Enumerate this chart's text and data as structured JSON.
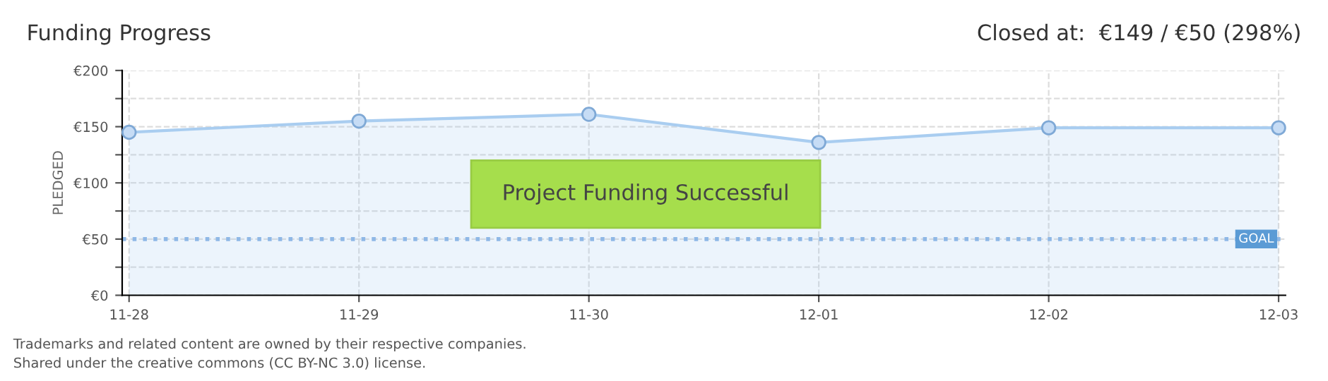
{
  "chart_data": {
    "type": "area",
    "title": "Funding Progress",
    "subtitle": "Closed at:  €149 / €50 (298%)",
    "ylabel": "PLEDGED",
    "categories": [
      "11-28",
      "11-29",
      "11-30",
      "12-01",
      "12-02",
      "12-03"
    ],
    "series": [
      {
        "color": "#a9cdf0",
        "values": [
          145,
          155,
          161,
          136,
          149,
          149
        ]
      }
    ],
    "ylim": [
      0,
      200
    ],
    "yticks": [
      {
        "value": 0,
        "label": "€0"
      },
      {
        "value": 25,
        "label": null
      },
      {
        "value": 50,
        "label": "€50"
      },
      {
        "value": 75,
        "label": null
      },
      {
        "value": 100,
        "label": "€100"
      },
      {
        "value": 125,
        "label": null
      },
      {
        "value": 150,
        "label": "€150"
      },
      {
        "value": 175,
        "label": null
      },
      {
        "value": 200,
        "label": "€200"
      }
    ],
    "grid": true,
    "marker": "circle",
    "line_style": "solid",
    "ref_lines": [
      {
        "axis": "y",
        "value": 50,
        "label": "GOAL",
        "color": "#8fb8e6",
        "line_style": "dotted"
      }
    ],
    "annotations": [
      "Project Funding Successful",
      "Trademarks and related content are owned by their respective companies.",
      "Shared under the creative commons (CC BY-NC 3.0) license."
    ]
  }
}
